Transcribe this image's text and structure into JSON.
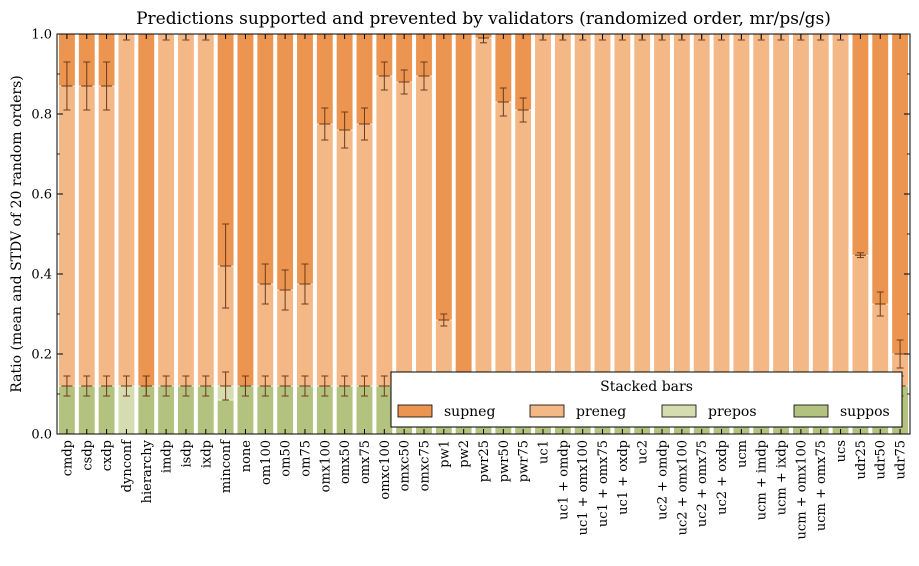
{
  "chart_data": {
    "type": "bar",
    "stacked": true,
    "title": "Predictions supported and prevented by validators (randomized order, mr/ps/gs)",
    "xlabel": "",
    "ylabel": "Ratio (mean and STDV of 20 random orders)",
    "ylim": [
      0,
      1
    ],
    "yticks": [
      "0.0",
      "0.2",
      "0.4",
      "0.6",
      "0.8",
      "1.0"
    ],
    "grid": false,
    "legend": {
      "title": "Stacked bars",
      "position": "lower-right"
    },
    "categories": [
      "cmdp",
      "csdp",
      "cxdp",
      "dynconf",
      "hierarchy",
      "imdp",
      "isdp",
      "ixdp",
      "minconf",
      "none",
      "om100",
      "om50",
      "om75",
      "omx100",
      "omx50",
      "omx75",
      "omxc100",
      "omxc50",
      "omxc75",
      "pw1",
      "pw2",
      "pwr25",
      "pwr50",
      "pwr75",
      "uc1",
      "uc1 + omdp",
      "uc1 + omx100",
      "uc1 + omx75",
      "uc1 + oxdp",
      "uc2",
      "uc2 + omdp",
      "uc2 + omx100",
      "uc2 + omx75",
      "uc2 + oxdp",
      "ucm",
      "ucm + imdp",
      "ucm + ixdp",
      "ucm + omx100",
      "ucm + omx75",
      "ucs",
      "udr25",
      "udr50",
      "udr75"
    ],
    "series": [
      {
        "name": "suppos",
        "color": "#b4c27f",
        "values": [
          0.12,
          0.12,
          0.12,
          0,
          0.12,
          0.12,
          0.12,
          0.12,
          0.085,
          0.12,
          0.12,
          0.12,
          0.12,
          0.12,
          0.12,
          0.12,
          0.12,
          0.12,
          0.12,
          0.12,
          0.12,
          0.12,
          0.12,
          0.12,
          0.12,
          0.12,
          0.12,
          0.12,
          0.12,
          0.12,
          0.12,
          0.12,
          0.12,
          0.12,
          0.12,
          0.12,
          0.12,
          0.12,
          0.12,
          0.12,
          0.12,
          0.12,
          0.12
        ]
      },
      {
        "name": "prepos",
        "color": "#d5dcaf",
        "values": [
          0,
          0,
          0,
          0.12,
          0,
          0,
          0,
          0,
          0.035,
          0,
          0,
          0,
          0,
          0,
          0,
          0,
          0,
          0,
          0,
          0,
          0,
          0,
          0,
          0,
          0,
          0,
          0,
          0,
          0,
          0,
          0,
          0,
          0,
          0,
          0,
          0,
          0,
          0,
          0,
          0,
          0,
          0,
          0
        ]
      },
      {
        "name": "preneg",
        "color": "#f4b886",
        "values": [
          0.75,
          0.75,
          0.75,
          0.88,
          0,
          0.88,
          0.88,
          0.88,
          0.3,
          0,
          0.255,
          0.24,
          0.255,
          0.655,
          0.64,
          0.655,
          0.775,
          0.76,
          0.775,
          0.165,
          0,
          0.87,
          0.71,
          0.69,
          0.88,
          0.88,
          0.88,
          0.88,
          0.88,
          0.88,
          0.88,
          0.88,
          0.88,
          0.88,
          0.88,
          0.88,
          0.88,
          0.88,
          0.88,
          0.88,
          0.327,
          0.205,
          0.08
        ]
      },
      {
        "name": "supneg",
        "color": "#ec9550",
        "values": [
          0.13,
          0.13,
          0.13,
          0,
          0.88,
          0,
          0,
          0,
          0.58,
          0.88,
          0.625,
          0.64,
          0.625,
          0.225,
          0.24,
          0.225,
          0.105,
          0.12,
          0.105,
          0.715,
          0.88,
          0.01,
          0.17,
          0.19,
          0,
          0,
          0,
          0,
          0,
          0,
          0,
          0,
          0,
          0,
          0,
          0,
          0,
          0,
          0,
          0,
          0.553,
          0.675,
          0.8
        ]
      }
    ],
    "error_bars": {
      "description": "mean ± STDV",
      "lower": [
        0.12,
        0.12,
        0.12,
        0.12,
        0.12,
        0.12,
        0.12,
        0.12,
        0.12,
        0.12,
        0.12,
        0.12,
        0.12,
        0.12,
        0.12,
        0.12,
        0.12,
        0.12,
        0.12,
        0.12,
        0.12,
        0.12,
        0.12,
        0.12,
        0.12,
        0.12,
        0.12,
        0.12,
        0.12,
        0.12,
        0.12,
        0.12,
        0.12,
        0.12,
        0.12,
        0.12,
        0.12,
        0.12,
        0.12,
        0.12,
        0.12,
        0.12,
        0.12
      ],
      "lower_err": [
        0.025,
        0.025,
        0.025,
        0.025,
        0.025,
        0.025,
        0.025,
        0.025,
        0.035,
        0.025,
        0.025,
        0.025,
        0.025,
        0.025,
        0.025,
        0.025,
        0.025,
        0.025,
        0.025,
        0.025,
        0.025,
        0.025,
        0.025,
        0.025,
        0.025,
        0.025,
        0.025,
        0.025,
        0.025,
        0.025,
        0.025,
        0.025,
        0.025,
        0.025,
        0.025,
        0.025,
        0.025,
        0.025,
        0.025,
        0.025,
        0.025,
        0.025,
        0.025
      ],
      "upper": [
        0.87,
        0.87,
        0.87,
        1.0,
        0.12,
        1.0,
        1.0,
        1.0,
        0.42,
        0.12,
        0.375,
        0.36,
        0.375,
        0.775,
        0.76,
        0.775,
        0.895,
        0.88,
        0.895,
        0.285,
        0.12,
        0.99,
        0.83,
        0.81,
        1.0,
        1.0,
        1.0,
        1.0,
        1.0,
        1.0,
        1.0,
        1.0,
        1.0,
        1.0,
        1.0,
        1.0,
        1.0,
        1.0,
        1.0,
        1.0,
        0.447,
        0.325,
        0.2
      ],
      "upper_err": [
        0.06,
        0.06,
        0.06,
        0.015,
        0.025,
        0.015,
        0.015,
        0.015,
        0.105,
        0.025,
        0.05,
        0.05,
        0.05,
        0.04,
        0.045,
        0.04,
        0.035,
        0.03,
        0.035,
        0.015,
        0.025,
        0.012,
        0.035,
        0.03,
        0.015,
        0.015,
        0.015,
        0.015,
        0.015,
        0.015,
        0.015,
        0.015,
        0.015,
        0.015,
        0.015,
        0.015,
        0.015,
        0.015,
        0.015,
        0.015,
        0.006,
        0.03,
        0.035
      ]
    }
  }
}
